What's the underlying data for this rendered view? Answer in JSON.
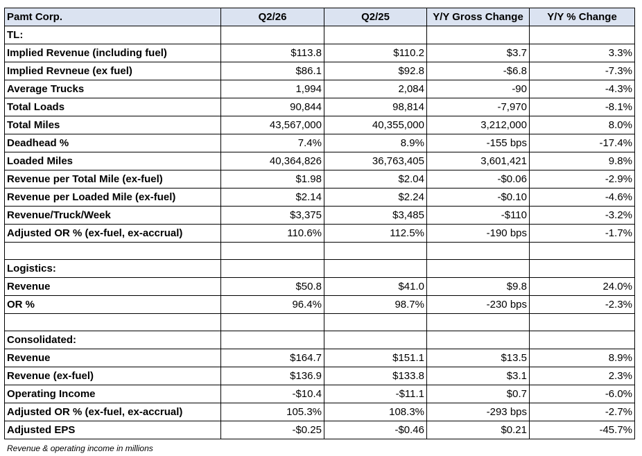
{
  "table": {
    "header": [
      "Pamt Corp.",
      "Q2/26",
      "Q2/25",
      "Y/Y Gross Change",
      "Y/Y % Change"
    ],
    "rows": [
      [
        "TL:",
        "",
        "",
        "",
        ""
      ],
      [
        "Implied Revenue (including fuel)",
        "$113.8",
        "$110.2",
        "$3.7",
        "3.3%"
      ],
      [
        "Implied Revneue (ex fuel)",
        "$86.1",
        "$92.8",
        "-$6.8",
        "-7.3%"
      ],
      [
        "Average Trucks",
        "1,994",
        "2,084",
        "-90",
        "-4.3%"
      ],
      [
        "Total Loads",
        "90,844",
        "98,814",
        "-7,970",
        "-8.1%"
      ],
      [
        "Total Miles",
        "43,567,000",
        "40,355,000",
        "3,212,000",
        "8.0%"
      ],
      [
        "Deadhead %",
        "7.4%",
        "8.9%",
        "-155 bps",
        "-17.4%"
      ],
      [
        "Loaded Miles",
        "40,364,826",
        "36,763,405",
        "3,601,421",
        "9.8%"
      ],
      [
        "Revenue per Total Mile (ex-fuel)",
        "$1.98",
        "$2.04",
        "-$0.06",
        "-2.9%"
      ],
      [
        "Revenue per Loaded Mile (ex-fuel)",
        "$2.14",
        "$2.24",
        "-$0.10",
        "-4.6%"
      ],
      [
        "Revenue/Truck/Week",
        "$3,375",
        "$3,485",
        "-$110",
        "-3.2%"
      ],
      [
        "Adjusted OR % (ex-fuel, ex-accrual)",
        "110.6%",
        "112.5%",
        "-190 bps",
        "-1.7%"
      ],
      [
        "",
        "",
        "",
        "",
        ""
      ],
      [
        "Logistics:",
        "",
        "",
        "",
        ""
      ],
      [
        "Revenue",
        "$50.8",
        "$41.0",
        "$9.8",
        "24.0%"
      ],
      [
        "OR %",
        "96.4%",
        "98.7%",
        "-230 bps",
        "-2.3%"
      ],
      [
        "",
        "",
        "",
        "",
        ""
      ],
      [
        "Consolidated:",
        "",
        "",
        "",
        ""
      ],
      [
        "Revenue",
        "$164.7",
        "$151.1",
        "$13.5",
        "8.9%"
      ],
      [
        "Revenue (ex-fuel)",
        "$136.9",
        "$133.8",
        "$3.1",
        "2.3%"
      ],
      [
        "Operating Income",
        "-$10.4",
        "-$11.1",
        "$0.7",
        "-6.0%"
      ],
      [
        "Adjusted OR % (ex-fuel, ex-accrual)",
        "105.3%",
        "108.3%",
        "-293 bps",
        "-2.7%"
      ],
      [
        "Adjusted EPS",
        "-$0.25",
        "-$0.46",
        "$0.21",
        "-45.7%"
      ]
    ]
  },
  "footnote": "Revenue & operating income in millions",
  "colors": {
    "header_bg": "#dbe3f1",
    "border": "#000000"
  }
}
